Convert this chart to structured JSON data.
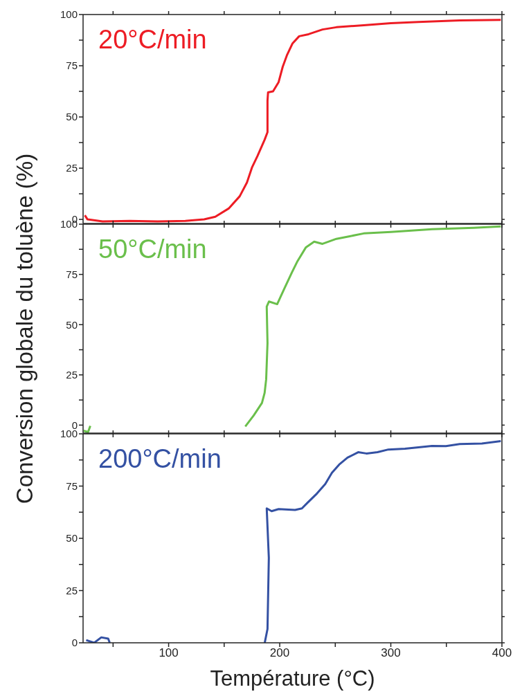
{
  "chart_data": [
    {
      "type": "line",
      "xlim": [
        23,
        400
      ],
      "xticks": [
        {
          "value": 50,
          "label": null
        },
        100,
        {
          "value": 150,
          "label": null
        },
        200,
        {
          "value": 250,
          "label": null
        },
        300,
        {
          "value": 350,
          "label": null
        },
        400
      ],
      "ylim": [
        -2,
        100
      ],
      "yticks": [
        0,
        {
          "value": 12.5,
          "label": null
        },
        25,
        {
          "value": 37.5,
          "label": null
        },
        50,
        {
          "value": 62.5,
          "label": null
        },
        75,
        {
          "value": 87.5,
          "label": null
        },
        100
      ],
      "tick_labels": "y",
      "series": [
        {
          "name": "20°C/min",
          "color": "#ed1c24",
          "x": [
            24.6,
            27,
            40.6,
            65,
            90,
            115,
            132,
            142,
            154,
            164,
            170.5,
            175,
            180,
            186.5,
            189,
            189,
            189.5,
            194,
            199,
            202.7,
            206.4,
            211.4,
            217.5,
            226,
            238.5,
            251,
            275.6,
            300,
            325,
            362,
            399
          ],
          "values": [
            2,
            0,
            -1,
            -0.7,
            -1,
            -0.7,
            0,
            1.3,
            5.3,
            11.3,
            18,
            25.3,
            31,
            39,
            42.6,
            57.9,
            62,
            62.5,
            67,
            74.5,
            80,
            85.8,
            89.4,
            90.4,
            92.7,
            93.8,
            94.8,
            95.8,
            96.4,
            97.1,
            97.4
          ]
        }
      ]
    },
    {
      "type": "line",
      "xlim": [
        23,
        400
      ],
      "xticks": [
        {
          "value": 50,
          "label": null
        },
        100,
        {
          "value": 150,
          "label": null
        },
        200,
        {
          "value": 250,
          "label": null
        },
        300,
        {
          "value": 350,
          "label": null
        },
        400
      ],
      "ylim": [
        -4,
        100
      ],
      "yticks": [
        0,
        {
          "value": 12.5,
          "label": null
        },
        25,
        {
          "value": 37.5,
          "label": null
        },
        50,
        {
          "value": 62.5,
          "label": null
        },
        75,
        {
          "value": 87.5,
          "label": null
        },
        100
      ],
      "tick_labels": "y",
      "ylabel": "Conversion globale du toluène (%)",
      "series": [
        {
          "name": "50°C/min",
          "color": "#6abf4b",
          "x": [
            23.5,
            27.5,
            29.5,
            31,
            100,
            161.8,
            169,
            176.6,
            184,
            186.4,
            187.8,
            189,
            188.3,
            190.3,
            197.7,
            204,
            211,
            216,
            223.6,
            231,
            238.5,
            251,
            263,
            275.6,
            300,
            337,
            374.5,
            399
          ],
          "values": [
            -2.8,
            -3.5,
            -0.4,
            null,
            null,
            null,
            -0.7,
            4.8,
            11,
            16,
            22.8,
            40.8,
            59,
            61.5,
            60.2,
            67.8,
            76,
            81.6,
            88.5,
            91.3,
            90.2,
            92.7,
            94,
            95.4,
            96.1,
            97.5,
            98.2,
            98.9
          ]
        }
      ]
    },
    {
      "type": "line",
      "xlim": [
        23,
        400
      ],
      "xticks": [
        {
          "value": 50,
          "label": null
        },
        100,
        {
          "value": 150,
          "label": null
        },
        200,
        {
          "value": 250,
          "label": null
        },
        300,
        {
          "value": 350,
          "label": null
        },
        400
      ],
      "ylim": [
        0,
        100
      ],
      "yticks": [
        0,
        {
          "value": 12.5,
          "label": null
        },
        25,
        {
          "value": 37.5,
          "label": null
        },
        50,
        {
          "value": 62.5,
          "label": null
        },
        75,
        {
          "value": 87.5,
          "label": null
        },
        100
      ],
      "xlabel": "Température (°C)",
      "series": [
        {
          "name": "200°C/min",
          "color": "#3451a3",
          "x": [
            25.8,
            33,
            39.4,
            45.6,
            47,
            100,
            186.5,
            189,
            190.2,
            188.3,
            192.7,
            199,
            213.8,
            220,
            225,
            233.6,
            241,
            247,
            253.5,
            261,
            270.6,
            278,
            288,
            297.8,
            312.7,
            337,
            349.6,
            362,
            382,
            399
          ],
          "values": [
            1.3,
            0,
            2.6,
            2,
            0,
            null,
            0,
            6.6,
            40.7,
            64.3,
            63,
            64,
            63.6,
            64.3,
            67,
            71.5,
            76,
            81.4,
            85.3,
            88.6,
            91.2,
            90.6,
            91.2,
            92.5,
            92.9,
            94.2,
            94.1,
            95.1,
            95.4,
            96.5
          ]
        }
      ]
    }
  ]
}
